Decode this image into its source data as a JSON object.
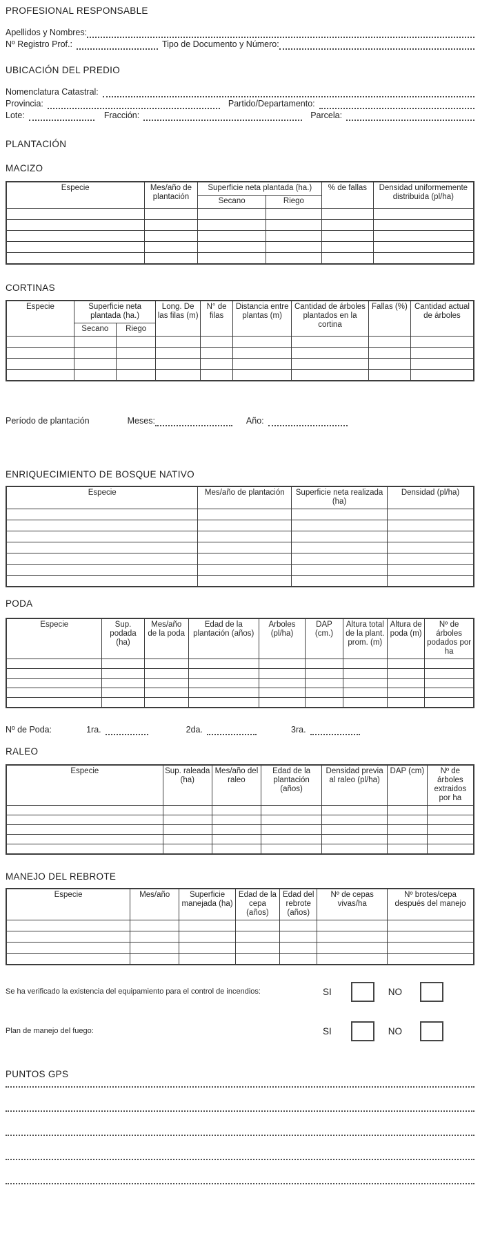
{
  "profesional": {
    "title": "PROFESIONAL RESPONSABLE",
    "apellidos": {
      "label": "Apellidos y Nombres:",
      "value": ""
    },
    "registro": {
      "label": "Nº Registro Prof.:",
      "value": ""
    },
    "tipo_documento": {
      "label": "Tipo de Documento y Número:",
      "value": ""
    }
  },
  "ubicacion": {
    "title": "UBICACIÓN DEL PREDIO",
    "nomenclatura": {
      "label": "Nomenclatura Catastral:",
      "value": ""
    },
    "provincia": {
      "label": "Provincia:",
      "value": ""
    },
    "partido": {
      "label": "Partido/Departamento:",
      "value": ""
    },
    "lote": {
      "label": "Lote:",
      "value": ""
    },
    "fraccion": {
      "label": "Fracción:",
      "value": ""
    },
    "parcela": {
      "label": "Parcela:",
      "value": ""
    }
  },
  "plantacion": {
    "title": "PLANTACIÓN"
  },
  "macizo": {
    "title": "MACIZO",
    "table": {
      "headers": {
        "especie": "Especie",
        "mes_ano": "Mes/año de plantación",
        "superficie": "Superficie neta plantada (ha.)",
        "secano": "Secano",
        "riego": "Riego",
        "fallas": "% de fallas",
        "densidad": "Densidad uniformemente distribuida  (pl/ha)"
      },
      "empty_rows": 5
    }
  },
  "cortinas": {
    "title": "CORTINAS",
    "table": {
      "headers": {
        "especie": "Especie",
        "superficie": "Superficie neta plantada  (ha.)",
        "secano": "Secano",
        "riego": "Riego",
        "longitud": "Long. De las filas (m)",
        "n_filas": "N° de filas",
        "distancia": "Distancia entre plantas (m)",
        "cantidad_plantados": "Cantidad de árboles plantados en la cortina",
        "fallas": "Fallas (%)",
        "cantidad_actual": "Cantidad actual de árboles"
      },
      "empty_rows": 4
    }
  },
  "periodo": {
    "label": "Período de plantación",
    "meses_label": "Meses:",
    "meses_value": "",
    "ano_label": "Año:",
    "ano_value": ""
  },
  "enriquecimiento": {
    "title": "ENRIQUECIMIENTO DE BOSQUE NATIVO",
    "table": {
      "headers": {
        "especie": "Especie",
        "mes_ano": "Mes/año de plantación",
        "superficie": "Superficie neta realizada (ha)",
        "densidad": "Densidad (pl/ha)"
      },
      "empty_rows": 7
    }
  },
  "poda": {
    "title": "PODA",
    "table": {
      "headers": {
        "especie": "Especie",
        "sup": "Sup. podada (ha)",
        "mes_ano": "Mes/año de la poda",
        "edad": "Edad de la plantación (años)",
        "arboles": "Arboles (pl/ha)",
        "dap": "DAP (cm.)",
        "altura_total": "Altura total de la plant. prom. (m)",
        "altura_poda": "Altura de poda (m)",
        "n_podados": "Nº de árboles podados por ha"
      },
      "empty_rows": 5
    },
    "n_poda": {
      "label": "Nº de Poda:",
      "primera": "1ra.",
      "primera_value": "",
      "segunda": "2da.",
      "segunda_value": "",
      "tercera": "3ra.",
      "tercera_value": ""
    }
  },
  "raleo": {
    "title": "RALEO",
    "table": {
      "headers": {
        "especie": "Especie",
        "sup": "Sup. raleada (ha)",
        "mes_ano": "Mes/año del raleo",
        "edad": "Edad de la plantación (años)",
        "densidad": "Densidad previa al raleo (pl/ha)",
        "dap": "DAP (cm)",
        "n_extraidos": "Nº de árboles extraidos por ha"
      },
      "empty_rows": 5
    }
  },
  "rebrote": {
    "title": "MANEJO DEL REBROTE",
    "table": {
      "headers": {
        "especie": "Especie",
        "mes_ano": "Mes/año",
        "superficie": "Superficie manejada (ha)",
        "edad_cepa": "Edad de la cepa (años)",
        "edad_rebrote": "Edad del rebrote (años)",
        "n_cepas": "Nº de cepas vivas/ha",
        "n_brotes": "Nº brotes/cepa después del manejo"
      },
      "empty_rows": 4
    }
  },
  "fuego": {
    "question1": "Se ha verificado la existencia del equipamiento para el control de incendios:",
    "question2": "Plan de manejo del fuego:",
    "si_label": "SI",
    "no_label": "NO",
    "q1_si_checked": false,
    "q1_no_checked": false,
    "q2_si_checked": false,
    "q2_no_checked": false
  },
  "gps": {
    "title": "PUNTOS GPS",
    "empty_lines": 5
  }
}
